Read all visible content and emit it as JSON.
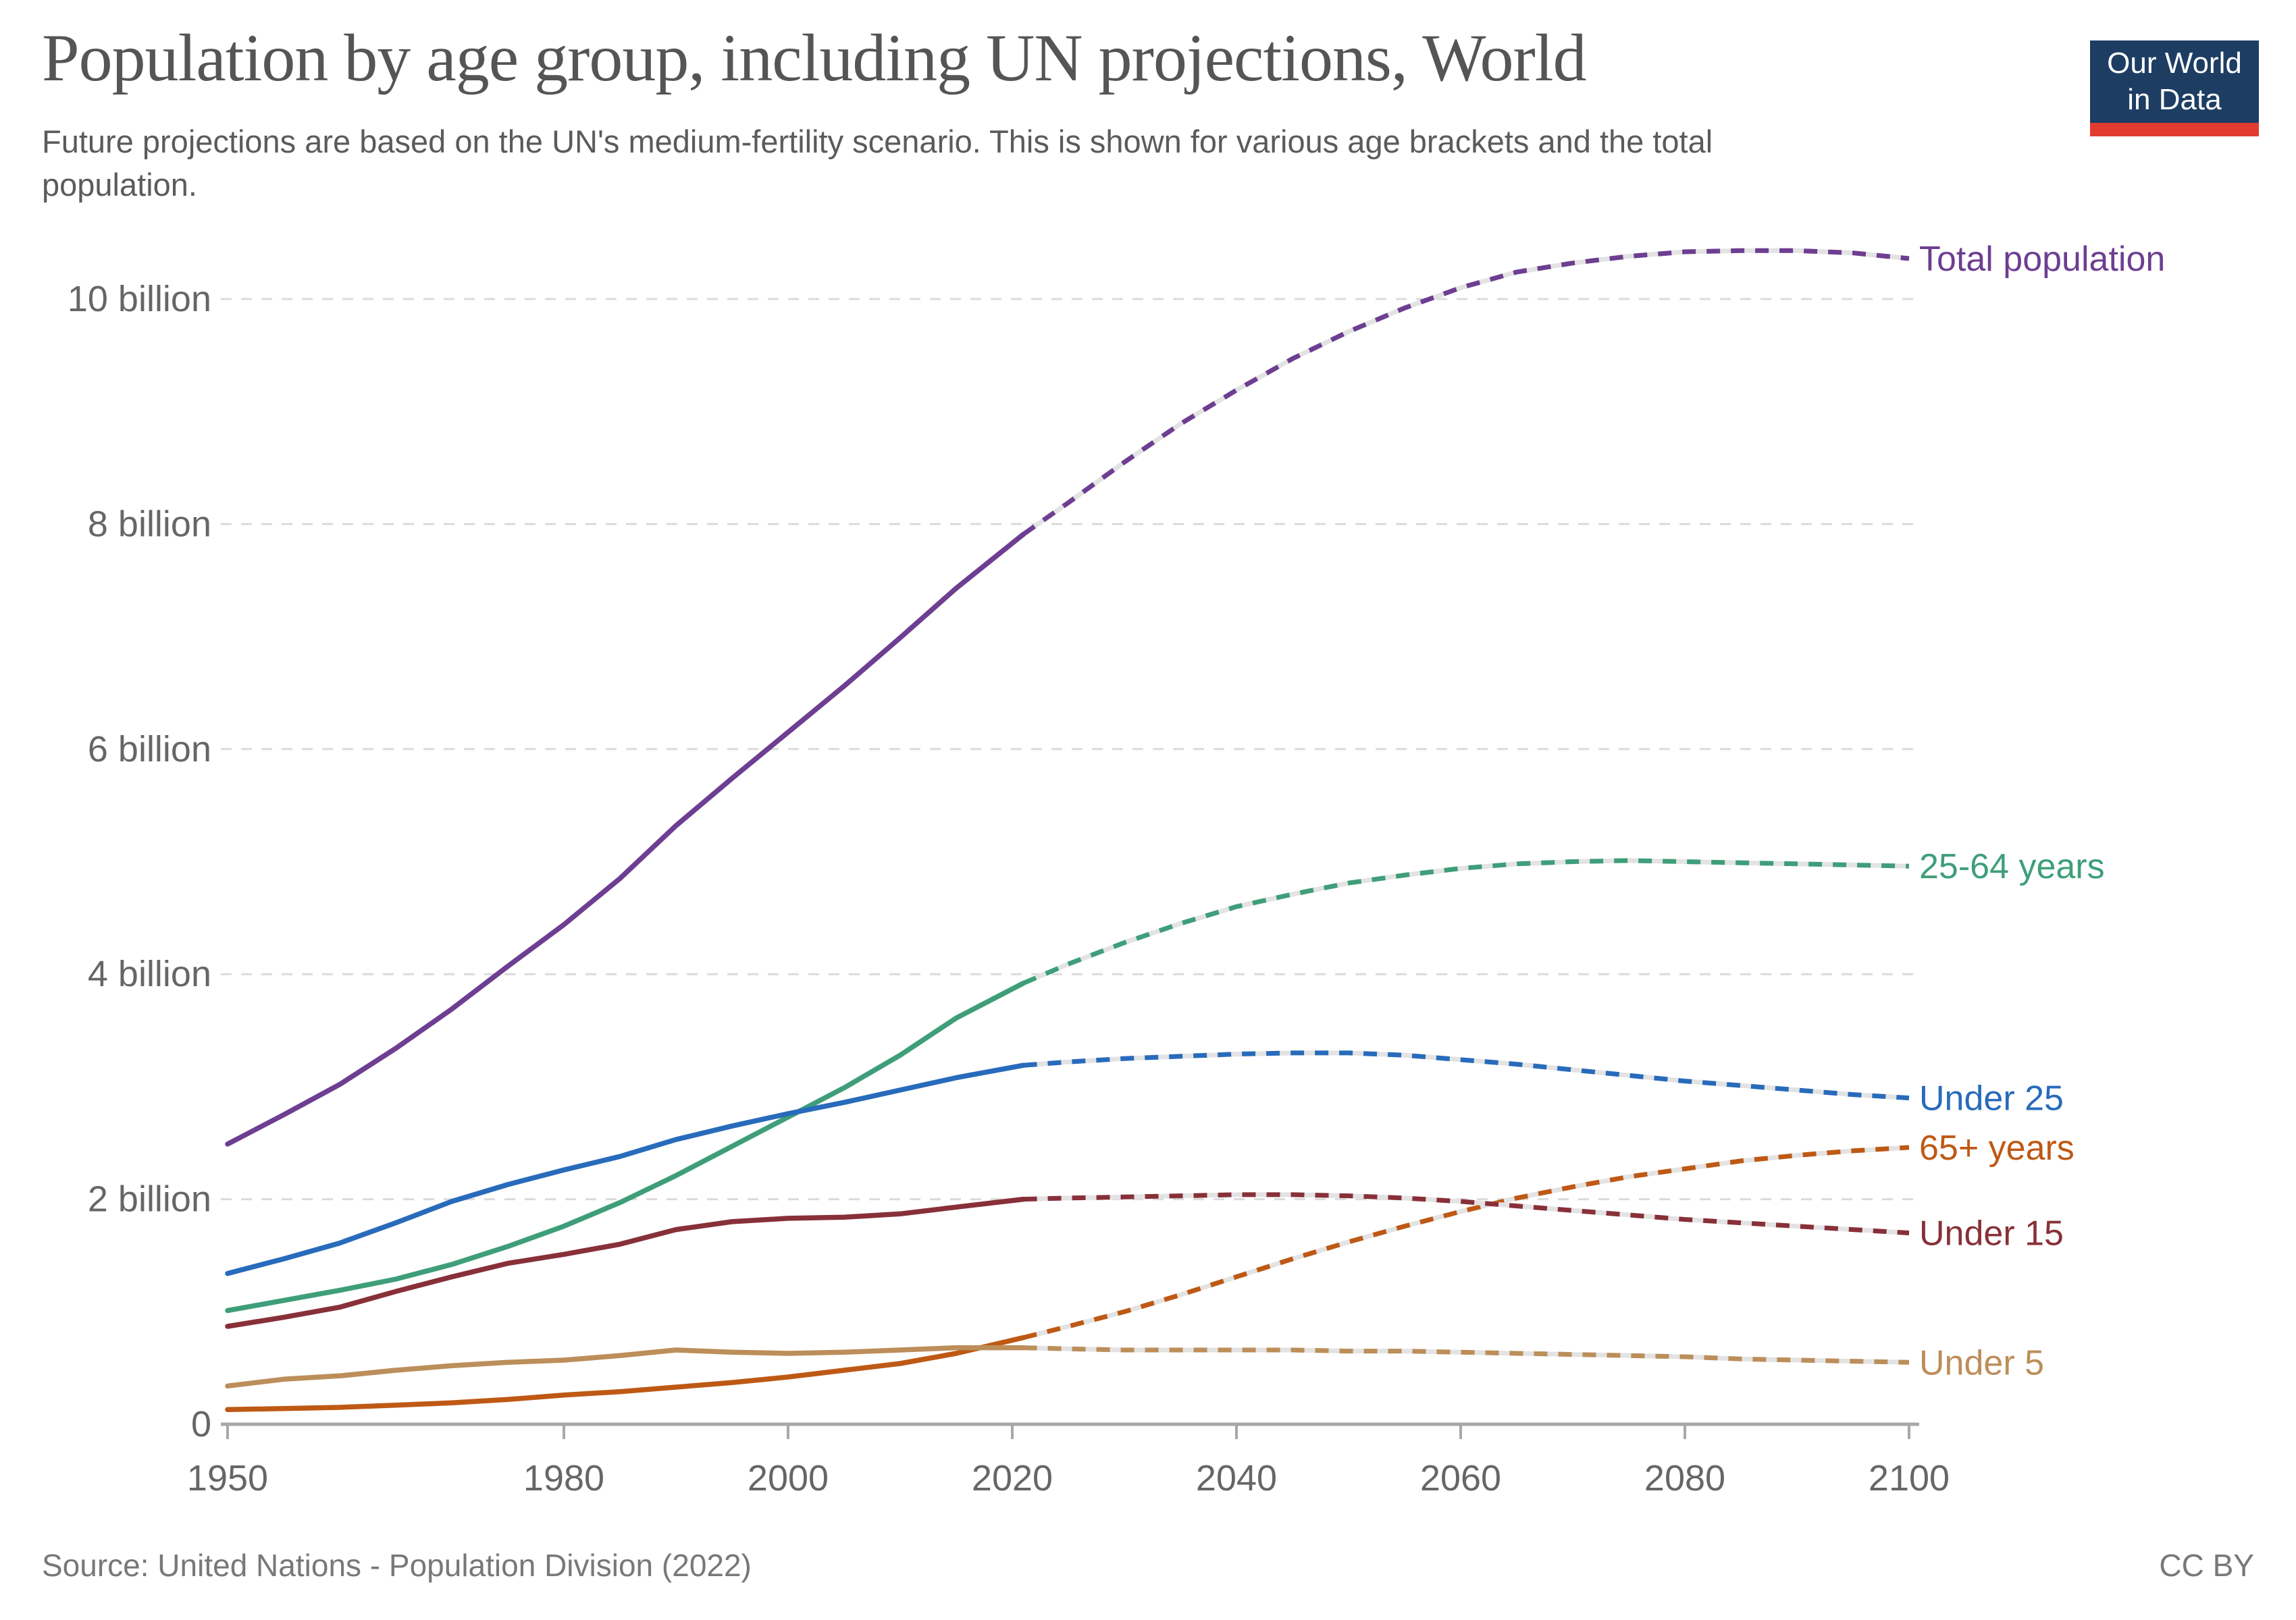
{
  "header": {
    "title": "Population by age group, including UN projections, World",
    "subtitle": "Future projections are based on the UN's medium-fertility scenario. This is shown for various age brackets and the total population.",
    "logo": {
      "line1": "Our World",
      "line2": "in Data",
      "bg_color": "#1D3D63",
      "stripe_color": "#E23C31"
    }
  },
  "footer": {
    "source": "Source: United Nations - Population Division (2022)",
    "license": "CC BY"
  },
  "chart_data": {
    "type": "line",
    "title": "Population by age group, including UN projections, World",
    "xlabel": "",
    "ylabel": "",
    "xlim": [
      1950,
      2100
    ],
    "ylim": [
      0,
      10.8
    ],
    "grid": true,
    "legend_position": "right-end-labels",
    "projection_start_year": 2021,
    "x_ticks": [
      1950,
      1980,
      2000,
      2020,
      2040,
      2060,
      2080,
      2100
    ],
    "y_ticks": [
      {
        "value": 0,
        "label": "0"
      },
      {
        "value": 2,
        "label": "2 billion"
      },
      {
        "value": 4,
        "label": "4 billion"
      },
      {
        "value": 6,
        "label": "6 billion"
      },
      {
        "value": 8,
        "label": "8 billion"
      },
      {
        "value": 10,
        "label": "10 billion"
      }
    ],
    "axis_color": "#a8a8a8",
    "gridline_color": "#dbdbdb",
    "tick_label_color": "#666666",
    "projection_underlay_color": "#e3e3e3",
    "series": [
      {
        "name": "Total population",
        "color": "#6D3E91",
        "points": [
          [
            1950,
            2.49
          ],
          [
            1955,
            2.75
          ],
          [
            1960,
            3.02
          ],
          [
            1965,
            3.34
          ],
          [
            1970,
            3.69
          ],
          [
            1975,
            4.07
          ],
          [
            1980,
            4.44
          ],
          [
            1985,
            4.85
          ],
          [
            1990,
            5.32
          ],
          [
            1995,
            5.74
          ],
          [
            2000,
            6.15
          ],
          [
            2005,
            6.56
          ],
          [
            2010,
            6.99
          ],
          [
            2015,
            7.43
          ],
          [
            2021,
            7.91
          ],
          [
            2025,
            8.19
          ],
          [
            2030,
            8.55
          ],
          [
            2035,
            8.89
          ],
          [
            2040,
            9.19
          ],
          [
            2045,
            9.47
          ],
          [
            2050,
            9.71
          ],
          [
            2055,
            9.92
          ],
          [
            2060,
            10.1
          ],
          [
            2065,
            10.24
          ],
          [
            2070,
            10.32
          ],
          [
            2075,
            10.38
          ],
          [
            2080,
            10.42
          ],
          [
            2085,
            10.43
          ],
          [
            2090,
            10.43
          ],
          [
            2095,
            10.41
          ],
          [
            2100,
            10.36
          ]
        ]
      },
      {
        "name": "25-64 years",
        "color": "#3F9E7A",
        "points": [
          [
            1950,
            1.01
          ],
          [
            1955,
            1.1
          ],
          [
            1960,
            1.19
          ],
          [
            1965,
            1.29
          ],
          [
            1970,
            1.42
          ],
          [
            1975,
            1.58
          ],
          [
            1980,
            1.76
          ],
          [
            1985,
            1.97
          ],
          [
            1990,
            2.21
          ],
          [
            1995,
            2.47
          ],
          [
            2000,
            2.73
          ],
          [
            2005,
            2.99
          ],
          [
            2010,
            3.28
          ],
          [
            2015,
            3.61
          ],
          [
            2021,
            3.92
          ],
          [
            2025,
            4.09
          ],
          [
            2030,
            4.28
          ],
          [
            2035,
            4.45
          ],
          [
            2040,
            4.6
          ],
          [
            2045,
            4.71
          ],
          [
            2050,
            4.81
          ],
          [
            2055,
            4.88
          ],
          [
            2060,
            4.94
          ],
          [
            2065,
            4.98
          ],
          [
            2070,
            5.0
          ],
          [
            2075,
            5.01
          ],
          [
            2080,
            5.0
          ],
          [
            2085,
            4.99
          ],
          [
            2090,
            4.98
          ],
          [
            2095,
            4.97
          ],
          [
            2100,
            4.96
          ]
        ]
      },
      {
        "name": "Under 25",
        "color": "#286BBB",
        "points": [
          [
            1950,
            1.34
          ],
          [
            1955,
            1.47
          ],
          [
            1960,
            1.61
          ],
          [
            1965,
            1.79
          ],
          [
            1970,
            1.98
          ],
          [
            1975,
            2.13
          ],
          [
            1980,
            2.26
          ],
          [
            1985,
            2.38
          ],
          [
            1990,
            2.53
          ],
          [
            1995,
            2.65
          ],
          [
            2000,
            2.76
          ],
          [
            2005,
            2.86
          ],
          [
            2010,
            2.97
          ],
          [
            2015,
            3.08
          ],
          [
            2021,
            3.19
          ],
          [
            2025,
            3.22
          ],
          [
            2030,
            3.25
          ],
          [
            2035,
            3.27
          ],
          [
            2040,
            3.29
          ],
          [
            2045,
            3.3
          ],
          [
            2050,
            3.3
          ],
          [
            2055,
            3.28
          ],
          [
            2060,
            3.24
          ],
          [
            2065,
            3.2
          ],
          [
            2070,
            3.15
          ],
          [
            2075,
            3.1
          ],
          [
            2080,
            3.05
          ],
          [
            2085,
            3.01
          ],
          [
            2090,
            2.97
          ],
          [
            2095,
            2.93
          ],
          [
            2100,
            2.9
          ]
        ]
      },
      {
        "name": "65+ years",
        "color": "#BE5915",
        "points": [
          [
            1950,
            0.13
          ],
          [
            1955,
            0.14
          ],
          [
            1960,
            0.15
          ],
          [
            1965,
            0.17
          ],
          [
            1970,
            0.19
          ],
          [
            1975,
            0.22
          ],
          [
            1980,
            0.26
          ],
          [
            1985,
            0.29
          ],
          [
            1990,
            0.33
          ],
          [
            1995,
            0.37
          ],
          [
            2000,
            0.42
          ],
          [
            2005,
            0.48
          ],
          [
            2010,
            0.54
          ],
          [
            2015,
            0.63
          ],
          [
            2021,
            0.77
          ],
          [
            2025,
            0.87
          ],
          [
            2030,
            1.0
          ],
          [
            2035,
            1.15
          ],
          [
            2040,
            1.31
          ],
          [
            2045,
            1.47
          ],
          [
            2050,
            1.62
          ],
          [
            2055,
            1.76
          ],
          [
            2060,
            1.89
          ],
          [
            2065,
            2.01
          ],
          [
            2070,
            2.11
          ],
          [
            2075,
            2.2
          ],
          [
            2080,
            2.27
          ],
          [
            2085,
            2.34
          ],
          [
            2090,
            2.39
          ],
          [
            2095,
            2.43
          ],
          [
            2100,
            2.46
          ]
        ]
      },
      {
        "name": "Under 15",
        "color": "#883039",
        "points": [
          [
            1950,
            0.87
          ],
          [
            1955,
            0.95
          ],
          [
            1960,
            1.04
          ],
          [
            1965,
            1.18
          ],
          [
            1970,
            1.31
          ],
          [
            1975,
            1.43
          ],
          [
            1980,
            1.51
          ],
          [
            1985,
            1.6
          ],
          [
            1990,
            1.73
          ],
          [
            1995,
            1.8
          ],
          [
            2000,
            1.83
          ],
          [
            2005,
            1.84
          ],
          [
            2010,
            1.87
          ],
          [
            2015,
            1.93
          ],
          [
            2021,
            2.0
          ],
          [
            2025,
            2.01
          ],
          [
            2030,
            2.02
          ],
          [
            2035,
            2.03
          ],
          [
            2040,
            2.04
          ],
          [
            2045,
            2.04
          ],
          [
            2050,
            2.03
          ],
          [
            2055,
            2.01
          ],
          [
            2060,
            1.98
          ],
          [
            2065,
            1.94
          ],
          [
            2070,
            1.9
          ],
          [
            2075,
            1.86
          ],
          [
            2080,
            1.82
          ],
          [
            2085,
            1.79
          ],
          [
            2090,
            1.76
          ],
          [
            2095,
            1.73
          ],
          [
            2100,
            1.7
          ]
        ]
      },
      {
        "name": "Under 5",
        "color": "#BC8E5A",
        "points": [
          [
            1950,
            0.34
          ],
          [
            1955,
            0.4
          ],
          [
            1960,
            0.43
          ],
          [
            1965,
            0.48
          ],
          [
            1970,
            0.52
          ],
          [
            1975,
            0.55
          ],
          [
            1980,
            0.57
          ],
          [
            1985,
            0.61
          ],
          [
            1990,
            0.66
          ],
          [
            1995,
            0.64
          ],
          [
            2000,
            0.63
          ],
          [
            2005,
            0.64
          ],
          [
            2010,
            0.66
          ],
          [
            2015,
            0.68
          ],
          [
            2021,
            0.68
          ],
          [
            2025,
            0.67
          ],
          [
            2030,
            0.66
          ],
          [
            2035,
            0.66
          ],
          [
            2040,
            0.66
          ],
          [
            2045,
            0.66
          ],
          [
            2050,
            0.65
          ],
          [
            2055,
            0.65
          ],
          [
            2060,
            0.64
          ],
          [
            2065,
            0.63
          ],
          [
            2070,
            0.62
          ],
          [
            2075,
            0.61
          ],
          [
            2080,
            0.6
          ],
          [
            2085,
            0.58
          ],
          [
            2090,
            0.57
          ],
          [
            2095,
            0.56
          ],
          [
            2100,
            0.55
          ]
        ]
      }
    ]
  }
}
